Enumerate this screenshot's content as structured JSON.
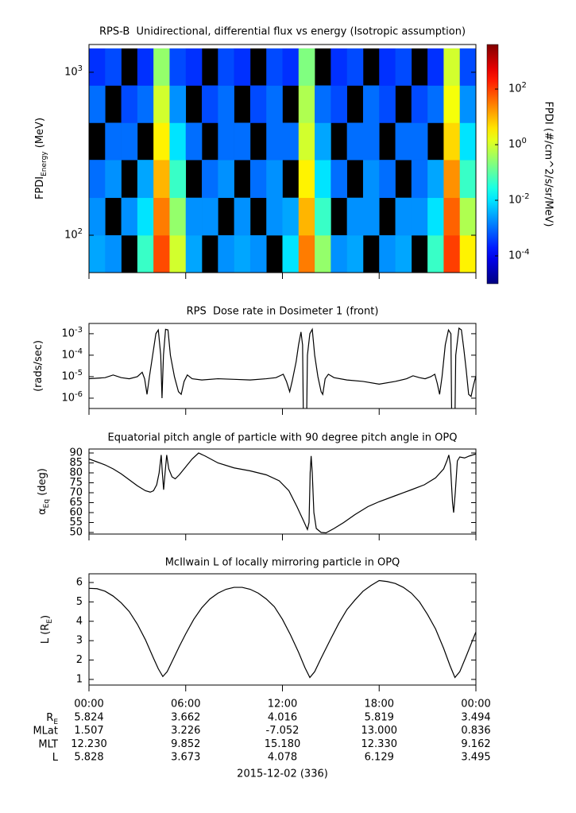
{
  "chart_data": [
    {
      "type": "heatmap",
      "title": "RPS-B  Unidirectional, differential flux vs energy (Isotropic assumption)",
      "ylabel": {
        "main": "FPDI",
        "sub": "Energy",
        "rest": " (MeV)"
      },
      "x_bins": [
        0,
        1,
        2,
        3,
        4,
        5,
        6,
        7,
        8,
        9,
        10,
        11,
        12,
        13,
        14,
        15,
        16,
        17,
        18,
        19,
        20,
        21,
        22,
        23,
        24
      ],
      "y_bins": [
        59,
        100,
        170,
        290,
        490,
        830,
        1400
      ],
      "values": [
        [
          0.003,
          0.002,
          null,
          0.05,
          80,
          1,
          0.003,
          null,
          0.002,
          0.003,
          0.002,
          null,
          0.01,
          30,
          0.3,
          0.002,
          0.003,
          null,
          0.002,
          0.003,
          null,
          0.05,
          100,
          3
        ],
        [
          0.002,
          null,
          0.002,
          0.01,
          30,
          0.3,
          0.002,
          0.002,
          null,
          0.002,
          null,
          0.002,
          0.003,
          10,
          0.05,
          null,
          0.002,
          0.002,
          null,
          0.002,
          0.002,
          0.01,
          50,
          0.5
        ],
        [
          0.001,
          0.002,
          null,
          0.003,
          10,
          0.05,
          null,
          0.001,
          0.002,
          null,
          0.001,
          0.002,
          null,
          3,
          0.01,
          0.001,
          null,
          0.002,
          0.001,
          null,
          0.001,
          0.003,
          20,
          0.05
        ],
        [
          null,
          0.001,
          0.001,
          null,
          3,
          0.01,
          0.001,
          null,
          0.001,
          0.001,
          null,
          0.001,
          0.001,
          1,
          0.003,
          null,
          0.001,
          0.001,
          null,
          0.001,
          0.001,
          null,
          5,
          0.01
        ],
        [
          0.001,
          null,
          0.0005,
          0.001,
          1,
          0.002,
          null,
          0.0005,
          0.001,
          null,
          0.0005,
          0.001,
          null,
          0.5,
          0.001,
          0.0005,
          null,
          0.001,
          0.0005,
          null,
          0.0005,
          0.001,
          2,
          0.002
        ],
        [
          0.0003,
          0.0005,
          null,
          0.0003,
          0.3,
          0.0005,
          0.0003,
          null,
          0.0005,
          0.0003,
          null,
          0.0005,
          0.0003,
          0.2,
          null,
          0.0003,
          0.0005,
          null,
          0.0003,
          0.0005,
          null,
          0.0003,
          1,
          0.0005
        ]
      ],
      "log_y": true,
      "ylim": [
        59,
        1480
      ],
      "yticks": [
        {
          "value": 100,
          "label": "10^2"
        },
        {
          "value": 1000,
          "label": "10^3"
        }
      ],
      "xlim": [
        0,
        24
      ],
      "xticks": [
        0,
        6,
        12,
        18,
        24
      ],
      "colorbar": {
        "label": "FPDI (#/cm^2/s/sr/MeV)",
        "lim": [
          1e-05,
          4000
        ],
        "colormap": "jet",
        "ticks": [
          {
            "value": 100,
            "label": "10^2"
          },
          {
            "value": 1,
            "label": "10^0"
          },
          {
            "value": 0.01,
            "label": "10^-2"
          },
          {
            "value": 0.0001,
            "label": "10^-4"
          }
        ]
      }
    },
    {
      "type": "line",
      "title": "RPS  Dose rate in Dosimeter 1 (front)",
      "ylabel": {
        "main": "(rads/sec)"
      },
      "color": "#000000",
      "x": [
        0,
        0.5,
        1,
        1.5,
        2,
        2.5,
        3,
        3.3,
        3.45,
        3.6,
        3.75,
        3.95,
        4.15,
        4.3,
        4.45,
        4.53,
        4.62,
        4.75,
        4.9,
        5.05,
        5.3,
        5.55,
        5.72,
        5.9,
        6.1,
        6.4,
        7,
        8,
        9,
        10,
        11,
        11.6,
        12.05,
        12.25,
        12.45,
        12.6,
        12.85,
        13,
        13.15,
        13.25,
        13.3,
        13.5,
        13.55,
        13.7,
        13.85,
        14,
        14.2,
        14.4,
        14.5,
        14.65,
        14.85,
        15.2,
        16,
        17,
        18,
        19,
        19.7,
        20.1,
        20.5,
        20.85,
        21.2,
        21.45,
        21.6,
        21.75,
        21.9,
        22.1,
        22.3,
        22.45,
        22.5,
        22.7,
        22.75,
        22.95,
        23.1,
        23.25,
        23.4,
        23.55,
        23.7,
        23.85,
        24
      ],
      "values": [
        8e-06,
        8.5e-06,
        9e-06,
        1.2e-05,
        9e-06,
        8e-06,
        1e-05,
        1.6e-05,
        8e-06,
        1.5e-06,
        1e-05,
        0.0001,
        0.001,
        0.0015,
        0.0001,
        1e-06,
        0.0001,
        0.0016,
        0.0015,
        0.0001,
        1e-05,
        2e-06,
        1.5e-06,
        6e-06,
        1.2e-05,
        8e-06,
        7e-06,
        8e-06,
        7.5e-06,
        7e-06,
        8e-06,
        9e-06,
        1.3e-05,
        6e-06,
        2e-06,
        6e-06,
        5e-05,
        0.0003,
        0.0012,
        0.0003,
        1e-07,
        1e-07,
        0.0001,
        0.001,
        0.0016,
        0.0001,
        1e-05,
        2e-06,
        1.5e-06,
        8e-06,
        1.3e-05,
        9e-06,
        7e-06,
        6e-06,
        4.5e-06,
        6e-06,
        8e-06,
        1.1e-05,
        9e-06,
        8e-06,
        1e-05,
        1.3e-05,
        5e-06,
        1.5e-06,
        1e-05,
        0.0003,
        0.0015,
        0.001,
        1e-07,
        1e-07,
        0.0001,
        0.0018,
        0.0015,
        0.0002,
        2e-05,
        1.5e-06,
        1.2e-06,
        4e-06,
        1.1e-05
      ],
      "log_y": true,
      "ylim": [
        3.3e-07,
        0.003
      ],
      "yticks": [
        {
          "value": 0.001,
          "label": "10^-3"
        },
        {
          "value": 0.0001,
          "label": "10^-4"
        },
        {
          "value": 1e-05,
          "label": "10^-5"
        },
        {
          "value": 1e-06,
          "label": "10^-6"
        }
      ],
      "xlim": [
        0,
        24
      ],
      "xticks": [
        0,
        6,
        12,
        18,
        24
      ]
    },
    {
      "type": "line",
      "title": "Equatorial pitch angle of particle with 90 degree pitch angle in OPQ",
      "ylabel": {
        "main": "α",
        "sub": "Eq",
        "rest": " (deg)"
      },
      "color": "#000000",
      "x": [
        0,
        0.5,
        1,
        1.5,
        2,
        2.5,
        3,
        3.5,
        3.8,
        4,
        4.2,
        4.35,
        4.48,
        4.55,
        4.63,
        4.72,
        4.82,
        4.95,
        5.15,
        5.35,
        5.6,
        6,
        6.4,
        6.8,
        7.2,
        8,
        9,
        10,
        11,
        11.8,
        12.4,
        12.9,
        13.3,
        13.55,
        13.65,
        13.72,
        13.78,
        13.85,
        13.95,
        14.1,
        14.4,
        14.7,
        15.2,
        15.8,
        16.5,
        17.3,
        18,
        19,
        20,
        20.8,
        21.5,
        22,
        22.2,
        22.32,
        22.42,
        22.55,
        22.62,
        22.72,
        22.85,
        23,
        23.3,
        23.6,
        24
      ],
      "values": [
        87,
        85.5,
        84,
        82,
        79.5,
        76.5,
        73.5,
        71,
        70.3,
        71,
        74,
        80,
        89,
        80,
        71.5,
        80,
        89,
        82,
        78,
        77,
        79,
        83,
        87,
        90,
        88.5,
        85,
        82.5,
        81,
        79,
        76,
        71,
        63,
        56,
        51.5,
        55,
        80,
        88.5,
        80,
        60,
        52,
        50,
        49.8,
        52,
        55,
        59,
        63,
        65.5,
        68.5,
        71.5,
        74,
        77.5,
        82,
        86,
        89,
        84,
        65,
        60,
        70,
        86,
        88,
        87.5,
        88.5,
        89.5
      ],
      "ylim": [
        49.2,
        92
      ],
      "yticks": [
        50,
        55,
        60,
        65,
        70,
        75,
        80,
        85,
        90
      ],
      "xlim": [
        0,
        24
      ],
      "xticks": [
        0,
        6,
        12,
        18,
        24
      ]
    },
    {
      "type": "line",
      "title": "McIlwain L of locally mirroring particle in OPQ",
      "ylabel": {
        "main": "L (R",
        "sub": "E",
        "rest": ")"
      },
      "color": "#000000",
      "x": [
        0,
        0.5,
        1,
        1.5,
        2,
        2.5,
        3,
        3.5,
        4,
        4.3,
        4.58,
        4.85,
        5.2,
        5.6,
        6,
        6.5,
        7,
        7.5,
        8,
        8.5,
        9,
        9.5,
        10,
        10.5,
        11,
        11.5,
        12,
        12.5,
        13,
        13.4,
        13.7,
        14,
        14.4,
        15,
        15.5,
        16,
        16.5,
        17,
        17.5,
        18,
        18.5,
        19,
        19.5,
        20,
        20.5,
        21,
        21.5,
        22,
        22.4,
        22.7,
        23,
        23.4,
        24
      ],
      "values": [
        5.7,
        5.68,
        5.55,
        5.3,
        4.95,
        4.5,
        3.85,
        3.05,
        2.1,
        1.55,
        1.15,
        1.4,
        2,
        2.7,
        3.35,
        4.1,
        4.7,
        5.15,
        5.45,
        5.65,
        5.75,
        5.75,
        5.65,
        5.45,
        5.15,
        4.75,
        4.1,
        3.3,
        2.4,
        1.6,
        1.1,
        1.4,
        2.1,
        3.1,
        3.9,
        4.6,
        5.1,
        5.55,
        5.85,
        6.1,
        6.05,
        5.95,
        5.75,
        5.45,
        5,
        4.35,
        3.6,
        2.6,
        1.7,
        1.1,
        1.4,
        2.2,
        3.45
      ],
      "ylim": [
        0.71,
        6.45
      ],
      "yticks": [
        1,
        2,
        3,
        4,
        5,
        6
      ],
      "xlim": [
        0,
        24
      ],
      "xticks": [
        0,
        6,
        12,
        18,
        24
      ]
    }
  ],
  "ephemeris": {
    "time_labels": [
      "00:00",
      "06:00",
      "12:00",
      "18:00",
      "00:00"
    ],
    "rows": [
      {
        "label": {
          "main": "R",
          "sub": "E"
        },
        "values": [
          "5.824",
          "3.662",
          "4.016",
          "5.819",
          "3.494"
        ]
      },
      {
        "label": {
          "main": "MLat"
        },
        "values": [
          "1.507",
          "3.226",
          "-7.052",
          "13.000",
          "0.836"
        ]
      },
      {
        "label": {
          "main": "MLT"
        },
        "values": [
          "12.230",
          "9.852",
          "15.180",
          "12.330",
          "9.162"
        ]
      },
      {
        "label": {
          "main": "L"
        },
        "values": [
          "5.828",
          "3.673",
          "4.078",
          "6.129",
          "3.495"
        ]
      }
    ],
    "date": "2015-12-02 (336)"
  }
}
